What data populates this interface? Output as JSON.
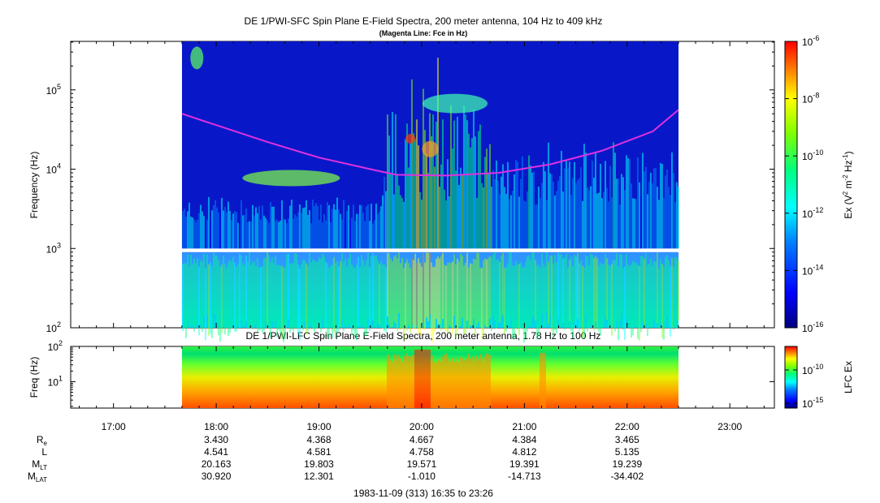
{
  "upper_title": "DE 1/PWI-SFC  Spin Plane E-Field Spectra, 200 meter antenna, 104 Hz to 409 kHz",
  "upper_subtitle": "(Magenta Line: Fce in Hz)",
  "lower_title": "DE 1/PWI-LFC  Spin Plane E-Field Spectra, 200 meter antenna, 1.78 Hz to 100 Hz",
  "date_range": "1983-11-09 (313) 16:35 to 23:26",
  "colors": {
    "fce_line": "#e030e0",
    "colormap": [
      "#00008f",
      "#0000ff",
      "#0080ff",
      "#00ffff",
      "#00ff80",
      "#80ff00",
      "#ffff00",
      "#ff8000",
      "#ff0000"
    ]
  },
  "chart_data": [
    {
      "type": "heatmap",
      "name": "upper-spectrogram",
      "title": "DE 1/PWI-SFC  Spin Plane E-Field Spectra, 200 meter antenna, 104 Hz to 409 kHz",
      "subtitle": "(Magenta Line: Fce in Hz)",
      "ylabel": "Frequency (Hz)",
      "y_scale": "log",
      "ylim": [
        100,
        409000
      ],
      "y_ticks": [
        {
          "base": "10",
          "exp": "2",
          "value": 100
        },
        {
          "base": "10",
          "exp": "3",
          "value": 1000
        },
        {
          "base": "10",
          "exp": "4",
          "value": 10000
        },
        {
          "base": "10",
          "exp": "5",
          "value": 100000
        }
      ],
      "data_time_range": [
        "17:40",
        "22:30"
      ],
      "fce_line": {
        "label": "Fce",
        "points": [
          {
            "t": "17:40",
            "f": 50000
          },
          {
            "t": "18:00",
            "f": 36000
          },
          {
            "t": "18:30",
            "f": 22000
          },
          {
            "t": "19:00",
            "f": 14000
          },
          {
            "t": "19:30",
            "f": 10000
          },
          {
            "t": "19:45",
            "f": 8500
          },
          {
            "t": "20:15",
            "f": 8300
          },
          {
            "t": "20:45",
            "f": 9000
          },
          {
            "t": "21:15",
            "f": 11500
          },
          {
            "t": "21:45",
            "f": 17000
          },
          {
            "t": "22:15",
            "f": 30000
          },
          {
            "t": "22:30",
            "f": 56000
          }
        ]
      },
      "colorbar": {
        "label_main": "Ex (V",
        "label_sup1": "2",
        "label_mid": " m",
        "label_sup2": "-2",
        "label_mid2": " Hz",
        "label_sup3": "-1",
        "label_end": ")",
        "scale": "log",
        "range": [
          1e-16,
          1e-06
        ],
        "ticks": [
          {
            "base": "10",
            "exp": "-6"
          },
          {
            "base": "10",
            "exp": "-8"
          },
          {
            "base": "10",
            "exp": "-10"
          },
          {
            "base": "10",
            "exp": "-12"
          },
          {
            "base": "10",
            "exp": "-14"
          },
          {
            "base": "10",
            "exp": "-16"
          }
        ]
      }
    },
    {
      "type": "heatmap",
      "name": "lower-spectrogram",
      "title": "DE 1/PWI-LFC  Spin Plane E-Field Spectra, 200 meter antenna, 1.78 Hz to 100 Hz",
      "ylabel": "Freq (Hz)",
      "y_scale": "log",
      "ylim": [
        1.78,
        100
      ],
      "y_ticks": [
        {
          "base": "10",
          "exp": "1",
          "value": 10
        },
        {
          "base": "10",
          "exp": "2",
          "value": 100
        }
      ],
      "data_time_range": [
        "17:40",
        "22:30"
      ],
      "colorbar": {
        "label": "LFC Ex",
        "scale": "log",
        "ticks": [
          {
            "base": "10",
            "exp": "-10"
          },
          {
            "base": "10",
            "exp": "-15"
          }
        ]
      }
    }
  ],
  "x_axis": {
    "ticks": [
      "17:00",
      "18:00",
      "19:00",
      "20:00",
      "21:00",
      "22:00",
      "23:00"
    ],
    "xlim": [
      "16:35",
      "23:26"
    ]
  },
  "ephemeris": {
    "rows": [
      {
        "label": "R",
        "sub": "e",
        "values": [
          "3.430",
          "4.368",
          "4.667",
          "4.384",
          "3.465"
        ]
      },
      {
        "label": "L",
        "sub": "",
        "values": [
          "4.541",
          "4.581",
          "4.758",
          "4.812",
          "5.135"
        ]
      },
      {
        "label": "M",
        "sub": "LT",
        "values": [
          "20.163",
          "19.803",
          "19.571",
          "19.391",
          "19.239"
        ]
      },
      {
        "label": "M",
        "sub": "LAT",
        "values": [
          "30.920",
          "12.301",
          "-1.010",
          "-14.713",
          "-34.402"
        ]
      }
    ],
    "columns_at": [
      "18:00",
      "19:00",
      "20:00",
      "21:00",
      "22:00"
    ]
  }
}
